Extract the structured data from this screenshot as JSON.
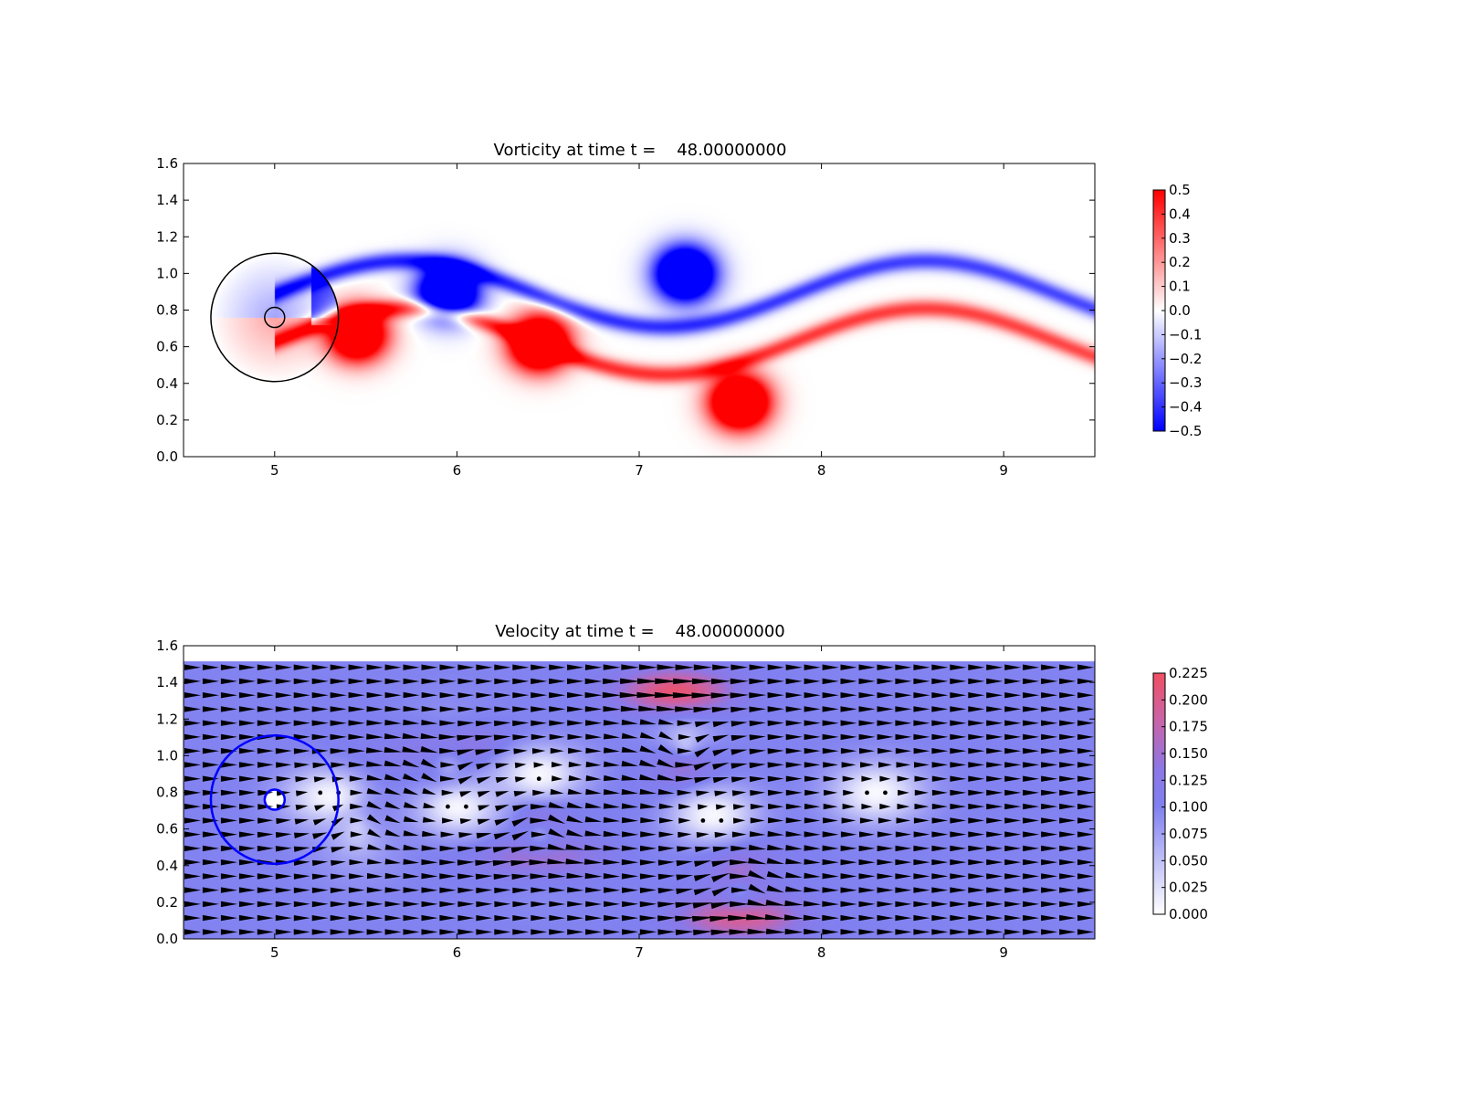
{
  "chart_data": [
    {
      "type": "heatmap",
      "title": "Vorticity at time t =    48.00000000",
      "xlabel": "",
      "ylabel": "",
      "xlim": [
        4.5,
        9.5
      ],
      "ylim": [
        0.0,
        1.6
      ],
      "xticks": [
        "5",
        "6",
        "7",
        "8",
        "9"
      ],
      "yticks": [
        "0.0",
        "0.2",
        "0.4",
        "0.6",
        "0.8",
        "1.0",
        "1.2",
        "1.4",
        "1.6"
      ],
      "colormap": "bwr",
      "colorbar": {
        "range": [
          -0.5,
          0.5
        ],
        "ticks": [
          "−0.5",
          "−0.4",
          "−0.3",
          "−0.2",
          "−0.1",
          "0.0",
          "0.1",
          "0.2",
          "0.3",
          "0.4",
          "0.5"
        ]
      },
      "vortices": [
        {
          "x": 5.95,
          "y": 0.9,
          "sign": -1,
          "strength": 0.5
        },
        {
          "x": 7.25,
          "y": 1.0,
          "sign": -1,
          "strength": 0.5
        },
        {
          "x": 6.45,
          "y": 0.62,
          "sign": 1,
          "strength": 0.5
        },
        {
          "x": 7.55,
          "y": 0.3,
          "sign": 1,
          "strength": 0.5
        },
        {
          "x": 5.45,
          "y": 0.67,
          "sign": 1,
          "strength": 0.45
        }
      ],
      "circles": [
        {
          "cx": 5.0,
          "cy": 0.76,
          "r": 0.35,
          "color": "#000000"
        },
        {
          "cx": 5.0,
          "cy": 0.76,
          "r": 0.055,
          "color": "#000000"
        }
      ],
      "grid": false
    },
    {
      "type": "heatmap",
      "title": "Velocity at time t =    48.00000000",
      "xlabel": "",
      "ylabel": "",
      "xlim": [
        4.5,
        9.5
      ],
      "ylim": [
        0.0,
        1.6
      ],
      "xticks": [
        "5",
        "6",
        "7",
        "8",
        "9"
      ],
      "yticks": [
        "0.0",
        "0.2",
        "0.4",
        "0.6",
        "0.8",
        "1.0",
        "1.2",
        "1.4",
        "1.6"
      ],
      "field_ylim": [
        0.0,
        1.52
      ],
      "colormap": "white-blue-red",
      "colorbar": {
        "range": [
          0.0,
          0.225
        ],
        "ticks": [
          "0.000",
          "0.025",
          "0.050",
          "0.075",
          "0.100",
          "0.125",
          "0.150",
          "0.175",
          "0.200",
          "0.225"
        ]
      },
      "background_speed": 0.1,
      "quiver": {
        "arrow_color": "#000000",
        "zero_marker": "dot"
      },
      "high_speed_regions": [
        {
          "x": 7.2,
          "y": 1.35,
          "speed": 0.225
        },
        {
          "x": 7.55,
          "y": 0.12,
          "speed": 0.225
        },
        {
          "x": 6.45,
          "y": 0.45,
          "speed": 0.18
        },
        {
          "x": 6.0,
          "y": 1.05,
          "speed": 0.16
        }
      ],
      "low_speed_regions": [
        {
          "x": 5.3,
          "y": 0.78,
          "speed": 0.0
        },
        {
          "x": 6.0,
          "y": 0.72,
          "speed": 0.01
        },
        {
          "x": 6.45,
          "y": 0.9,
          "speed": 0.01
        },
        {
          "x": 7.4,
          "y": 0.68,
          "speed": 0.0
        },
        {
          "x": 8.3,
          "y": 0.8,
          "speed": 0.03
        }
      ],
      "circles": [
        {
          "cx": 5.0,
          "cy": 0.76,
          "r": 0.35,
          "color": "#0000ff"
        },
        {
          "cx": 5.0,
          "cy": 0.76,
          "r": 0.055,
          "color": "#0000ff"
        }
      ],
      "grid": false
    }
  ]
}
